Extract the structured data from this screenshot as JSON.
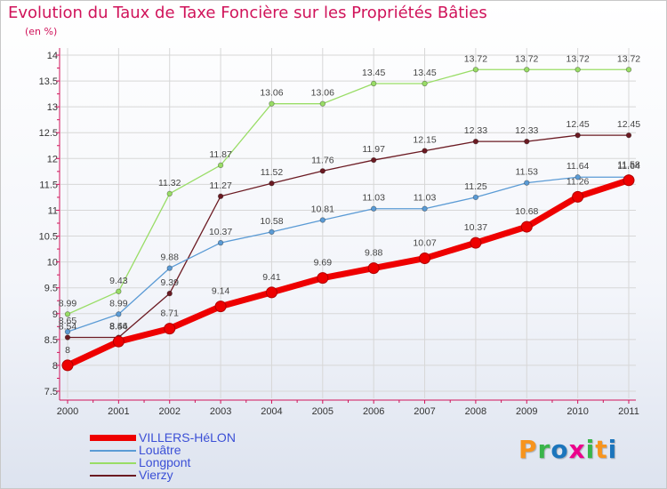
{
  "title": "Evolution du Taux de Taxe Foncière sur les Propriétés Bâties",
  "subtitle": "(en %)",
  "logo": {
    "letters": [
      "P",
      "r",
      "o",
      "x",
      "i",
      "t",
      "i"
    ],
    "colors": [
      "#f7941d",
      "#39b54a",
      "#1c75bc",
      "#ec008c",
      "#39b54a",
      "#f7941d",
      "#1c75bc"
    ]
  },
  "chart_data": {
    "type": "line",
    "title": "Evolution du Taux de Taxe Foncière sur les Propriétés Bâties",
    "ylabel": "(en %)",
    "x": [
      "2000",
      "2001",
      "2002",
      "2003",
      "2004",
      "2005",
      "2006",
      "2007",
      "2008",
      "2009",
      "2010",
      "2011"
    ],
    "ylim": [
      7.5,
      14
    ],
    "yticks": [
      "7.5",
      "8",
      "8.5",
      "9",
      "9.5",
      "10",
      "10.5",
      "11",
      "11.5",
      "12",
      "12.5",
      "13",
      "13.5",
      "14"
    ],
    "grid": true,
    "legend": "bottom-left",
    "series": [
      {
        "name": "Vierzy",
        "color": "#6b1a22",
        "width": 1.3,
        "marker": 2.8,
        "values": [
          8.54,
          8.54,
          9.39,
          11.27,
          11.52,
          11.76,
          11.97,
          12.15,
          12.33,
          12.33,
          12.45,
          12.45
        ],
        "labels": [
          "8.54",
          "8.54",
          "9.39",
          "11.27",
          "11.52",
          "11.76",
          "11.97",
          "12.15",
          "12.33",
          "12.33",
          "12.45",
          "12.45"
        ]
      },
      {
        "name": "Longpont",
        "color": "#99dd66",
        "width": 1.3,
        "marker": 2.8,
        "values": [
          8.99,
          9.43,
          11.32,
          11.87,
          13.06,
          13.06,
          13.45,
          13.45,
          13.72,
          13.72,
          13.72,
          13.72
        ],
        "labels": [
          "8.99",
          "9.43",
          "11.32",
          "11.87",
          "13.06",
          "13.06",
          "13.45",
          "13.45",
          "13.72",
          "13.72",
          "13.72",
          "13.72"
        ]
      },
      {
        "name": "Louâtre",
        "color": "#5b9bd5",
        "width": 1.3,
        "marker": 2.8,
        "values": [
          8.65,
          8.99,
          9.88,
          10.37,
          10.58,
          10.81,
          11.03,
          11.03,
          11.25,
          11.53,
          11.64,
          11.64
        ],
        "labels": [
          "8.65",
          "8.99",
          "9.88",
          "10.37",
          "10.58",
          "10.81",
          "11.03",
          "11.03",
          "11.25",
          "11.53",
          "11.64",
          "11.64"
        ]
      },
      {
        "name": "VILLERS-HéLON",
        "color": "#ee0000",
        "width": 7,
        "marker": 6,
        "values": [
          8.0,
          8.46,
          8.71,
          9.14,
          9.41,
          9.69,
          9.88,
          10.07,
          10.37,
          10.68,
          11.26,
          11.58
        ],
        "labels": [
          "8",
          "8.46",
          "8.71",
          "9.14",
          "9.41",
          "9.69",
          "9.88",
          "10.07",
          "10.37",
          "10.68",
          "11.26",
          "11.58"
        ]
      }
    ],
    "legend_order": [
      "VILLERS-HéLON",
      "Louâtre",
      "Longpont",
      "Vierzy"
    ]
  }
}
